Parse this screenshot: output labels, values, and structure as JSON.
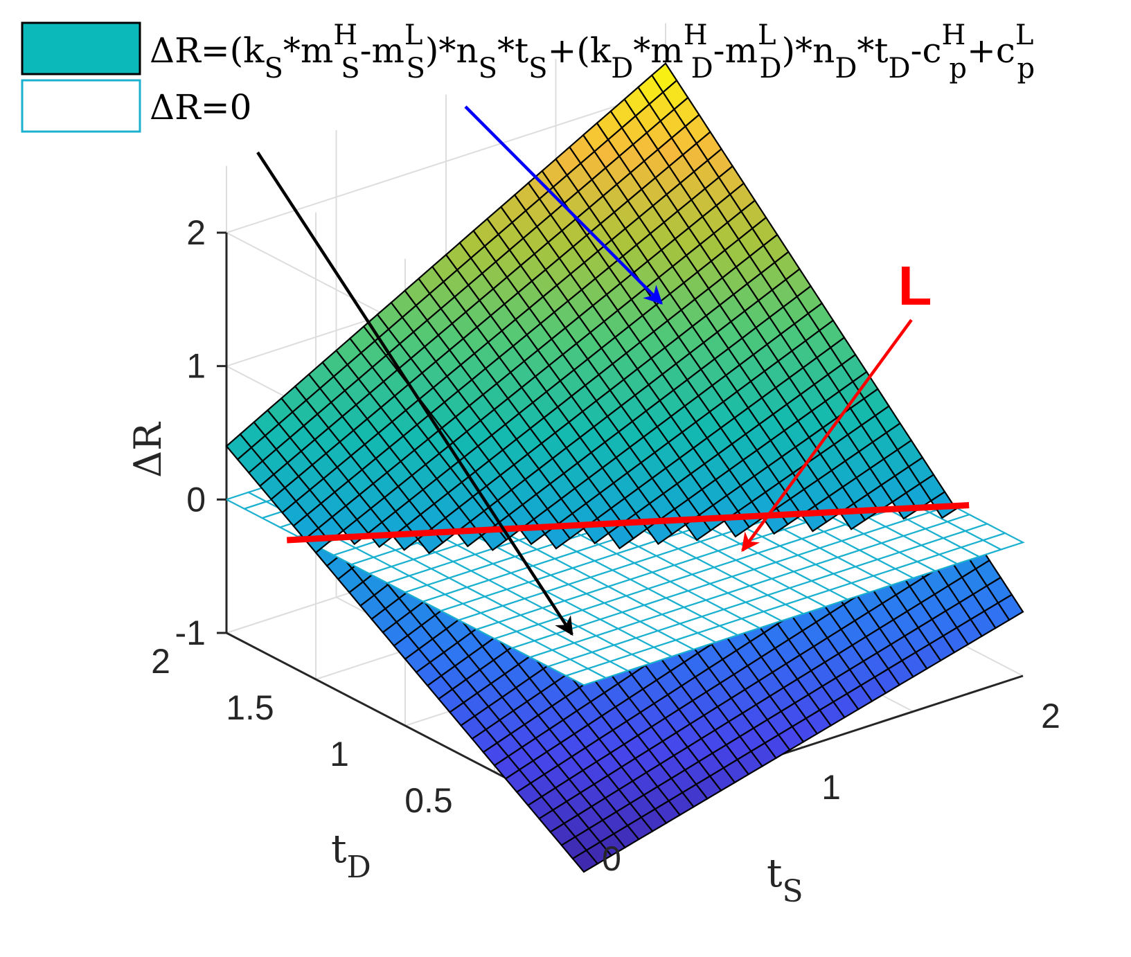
{
  "chart_data": {
    "type": "surface3d",
    "title": "",
    "legend": {
      "placement": "top-left",
      "entries": [
        {
          "name_parts": [
            {
              "t": "ΔR=(k",
              "s": "n"
            },
            {
              "t": "S",
              "s": "sub"
            },
            {
              "t": "*m",
              "s": "n"
            },
            {
              "t": "H",
              "s": "sup"
            },
            {
              "t": "S",
              "s": "sub"
            },
            {
              "t": "-m",
              "s": "n"
            },
            {
              "t": "L",
              "s": "sup"
            },
            {
              "t": "S",
              "s": "sub"
            },
            {
              "t": ")*n",
              "s": "n"
            },
            {
              "t": "S",
              "s": "sub"
            },
            {
              "t": "*t",
              "s": "n"
            },
            {
              "t": "S",
              "s": "sub"
            },
            {
              "t": "+(k",
              "s": "n"
            },
            {
              "t": "D",
              "s": "sub"
            },
            {
              "t": "*m",
              "s": "n"
            },
            {
              "t": "H",
              "s": "sup"
            },
            {
              "t": "D",
              "s": "sub"
            },
            {
              "t": "-m",
              "s": "n"
            },
            {
              "t": "L",
              "s": "sup"
            },
            {
              "t": "D",
              "s": "sub"
            },
            {
              "t": ")*n",
              "s": "n"
            },
            {
              "t": "D",
              "s": "sub"
            },
            {
              "t": "*t",
              "s": "n"
            },
            {
              "t": "D",
              "s": "sub"
            },
            {
              "t": "-c",
              "s": "n"
            },
            {
              "t": "H",
              "s": "sup"
            },
            {
              "t": "p",
              "s": "sub"
            },
            {
              "t": "+c",
              "s": "n"
            },
            {
              "t": "L",
              "s": "sup"
            },
            {
              "t": "p",
              "s": "sub"
            }
          ],
          "fill": "#0cb9ba",
          "edge": "#000000"
        },
        {
          "name_parts": [
            {
              "t": "ΔR=0",
              "s": "n"
            }
          ],
          "fill": "#ffffff",
          "edge": "#1ab0cf"
        }
      ]
    },
    "axes": {
      "x": {
        "label_main": "t",
        "label_sub": "S",
        "range": [
          0,
          2
        ],
        "ticks": [
          0,
          1,
          2
        ],
        "tick_labels": [
          "0",
          "1",
          "2"
        ]
      },
      "y": {
        "label_main": "t",
        "label_sub": "D",
        "range": [
          0,
          2
        ],
        "ticks": [
          0.5,
          1,
          1.5,
          2
        ],
        "tick_labels": [
          "0.5",
          "1",
          "1.5",
          "2"
        ]
      },
      "z": {
        "label": "ΔR",
        "range": [
          -1,
          2
        ],
        "ticks": [
          -1,
          0,
          1,
          2
        ],
        "tick_labels": [
          "-1",
          "0",
          "1",
          "2"
        ]
      }
    },
    "grid": true,
    "colormap": "parula",
    "series": [
      {
        "name": "ΔR=(kS*mHS-mLS)*nS*tS+(kD*mHD-mLD)*nD*tD-cHp+cLp",
        "kind": "surface",
        "corner_values": {
          "x0_y0": -1.4,
          "x2_y0": -0.52,
          "x0_y2": 0.4,
          "x2_y2": 2.2
        },
        "grid_divisions": 32,
        "edge_color": "#000000"
      },
      {
        "name": "ΔR=0",
        "kind": "plane",
        "z": 0,
        "grid_divisions": 20,
        "fill": "#ffffff",
        "edge_color": "#1ab0cf"
      }
    ],
    "annotations": [
      {
        "text": "",
        "color": "#0000ff",
        "points_to": "surface"
      },
      {
        "text": "",
        "color": "#000000",
        "points_to": "zero-plane"
      },
      {
        "text": "L",
        "color": "#ff0000",
        "points_to": "intersection-line"
      }
    ],
    "intersection_line": {
      "label": "L",
      "color": "#ff0000"
    }
  }
}
